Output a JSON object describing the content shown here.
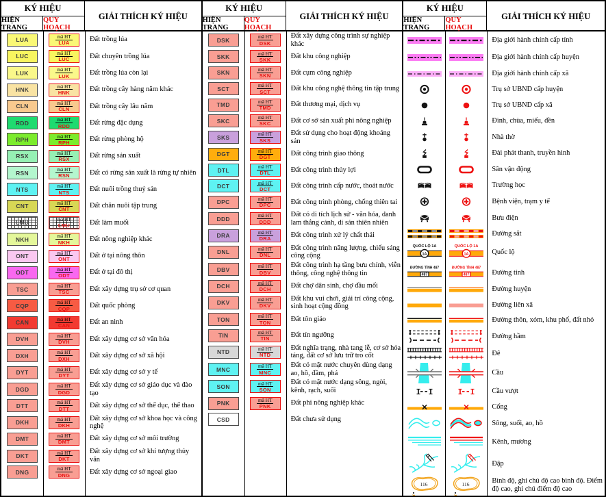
{
  "headers": {
    "symbol": "KÝ HIỆU",
    "current": "HIỆN TRẠNG",
    "planning": "QUY HOẠCH",
    "explanation": "GIẢI THÍCH KÝ HIỆU",
    "code_prefix": "mã HT"
  },
  "colors": {
    "planning_red": "#e80e0e",
    "symbol_black": "#141414",
    "magenta_band": "#fb7df3",
    "magenta_band_light": "#fdaef8",
    "road_orange": "#ffa90a",
    "water_cyan": "#35eded",
    "salmon": "#f99e93",
    "railway_gray": "#8c8c8c",
    "railway_pink": "#f7a2a2",
    "road_gray": "#8c8c8c"
  },
  "group1": {
    "rows": [
      {
        "code": "LUA",
        "color": "#faf876",
        "desc": "Đất trồng lúa"
      },
      {
        "code": "LUC",
        "color": "#f8f55f",
        "desc": "Đất chuyên trồng lúa"
      },
      {
        "code": "LUK",
        "color": "#faf88a",
        "desc": "Đất trồng lúa còn lại"
      },
      {
        "code": "HNK",
        "color": "#f9e3a3",
        "desc": "Đất trồng cây hàng năm khác"
      },
      {
        "code": "CLN",
        "color": "#f8c98e",
        "desc": "Đất trồng cây lâu năm"
      },
      {
        "code": "RDD",
        "color": "#1edb70",
        "desc": "Đất rừng đặc dụng"
      },
      {
        "code": "RPH",
        "color": "#7bec2c",
        "desc": "Đất rừng phòng hộ"
      },
      {
        "code": "RSX",
        "color": "#96f0b4",
        "desc": "Đất rừng sản xuất"
      },
      {
        "code": "RSN",
        "color": "#b4f6ce",
        "desc": "Đất có rừng sản xuất là rừng tự nhiên"
      },
      {
        "code": "NTS",
        "color": "#5ef2f2",
        "desc": "Đất nuôi trồng thuỷ sản"
      },
      {
        "code": "CNT",
        "color": "#d8d855",
        "desc": "Đất chăn nuôi tập trung"
      },
      {
        "code": "LMU",
        "color": "#ffffff",
        "pattern": "grid",
        "desc": "Đất làm muối"
      },
      {
        "code": "NKH",
        "color": "#e4f79a",
        "desc": "Đất nông nghiệp khác"
      },
      {
        "code": "ONT",
        "color": "#fac8f0",
        "desc": "Đất ở tại nông thôn"
      },
      {
        "code": "ODT",
        "color": "#f968f0",
        "desc": "Đất ở tại đô thị"
      },
      {
        "code": "TSC",
        "color": "#f99e93",
        "desc": "Đất xây dựng trụ sở cơ quan"
      },
      {
        "code": "CQP",
        "color": "#f75b43",
        "desc": "Đất quốc phòng"
      },
      {
        "code": "CAN",
        "color": "#f23a31",
        "desc": "Đất an ninh"
      },
      {
        "code": "DVH",
        "color": "#f99e93",
        "desc": "Đất xây dựng cơ sở văn hóa"
      },
      {
        "code": "DXH",
        "color": "#f99e93",
        "desc": "Đất xây dựng cơ sở xã hội"
      },
      {
        "code": "DYT",
        "color": "#f99e93",
        "desc": "Đất xây dựng cơ sở y tế"
      },
      {
        "code": "DGD",
        "color": "#f99e93",
        "desc": "Đất xây dựng cơ sở giáo dục và đào tạo"
      },
      {
        "code": "DTT",
        "color": "#f99e93",
        "desc": "Đất xây dựng cơ sở thể dục, thể thao"
      },
      {
        "code": "DKH",
        "color": "#f99e93",
        "desc": "Đất xây dựng cơ sở khoa học và công nghệ"
      },
      {
        "code": "DMT",
        "color": "#f99e93",
        "desc": "Đất xây dựng cơ sở môi trường"
      },
      {
        "code": "DKT",
        "color": "#f99e93",
        "desc": "Đất xây dựng cơ sở khí tượng thủy văn"
      },
      {
        "code": "DNG",
        "color": "#f99e93",
        "desc": "Đất xây dựng cơ sở ngoại giao"
      }
    ]
  },
  "group2": {
    "rows": [
      {
        "code": "DSK",
        "color": "#f99e93",
        "desc": "Đất xây dựng công trình sự nghiệp khác"
      },
      {
        "code": "SKK",
        "color": "#f99e93",
        "desc": "Đất khu công nghiệp"
      },
      {
        "code": "SKN",
        "color": "#f99e93",
        "desc": "Đất cụm công nghiệp"
      },
      {
        "code": "SCT",
        "color": "#f99e93",
        "desc": "Đất khu công nghệ thông tin tập trung"
      },
      {
        "code": "TMD",
        "color": "#f99e93",
        "desc": "Đất thương mại, dịch vụ"
      },
      {
        "code": "SKC",
        "color": "#f99e93",
        "desc": "Đất cơ sở sản xuất phi nông nghiệp"
      },
      {
        "code": "SKS",
        "color": "#c9a0dc",
        "desc": "Đất sử dụng cho hoạt động khoáng sản"
      },
      {
        "code": "DGT",
        "color": "#ffad0d",
        "desc": "Đất công trình giao thông"
      },
      {
        "code": "DTL",
        "color": "#5ef2f2",
        "desc": "Đất công trình thủy lợi"
      },
      {
        "code": "DCT",
        "color": "#5ef2f2",
        "desc": "Đất công trình cấp nước, thoát nước"
      },
      {
        "code": "DPC",
        "color": "#f99e93",
        "desc": "Đất công trình phòng, chống thiên tai"
      },
      {
        "code": "DDD",
        "color": "#f99e93",
        "desc": "Đất có di tích lịch sử - văn hóa, danh lam thắng cảnh, di sản thiên nhiên"
      },
      {
        "code": "DRA",
        "color": "#c9a0dc",
        "desc": "Đất công trình xử lý chất thải"
      },
      {
        "code": "DNL",
        "color": "#f99e93",
        "desc": "Đất công trình năng lượng, chiếu sáng công cộng"
      },
      {
        "code": "DBV",
        "color": "#f99e93",
        "desc": "Đất công trình hạ tầng bưu chính, viễn thông, công nghệ thông tin"
      },
      {
        "code": "DCH",
        "color": "#f99e93",
        "desc": "Đất chợ dân sinh, chợ đầu mối"
      },
      {
        "code": "DKV",
        "color": "#f99e93",
        "desc": "Đất khu vui chơi, giải trí công cộng, sinh hoạt cộng đồng"
      },
      {
        "code": "TON",
        "color": "#f99e93",
        "desc": "Đất tôn giáo"
      },
      {
        "code": "TIN",
        "color": "#f99e93",
        "desc": "Đất tín ngưỡng"
      },
      {
        "code": "NTD",
        "color": "#d8d8d8",
        "desc": "Đất nghĩa trạng, nhà tang lễ, cơ sở hỏa táng, đất cơ sở lưu trữ tro cốt"
      },
      {
        "code": "MNC",
        "color": "#5ef2f2",
        "desc": "Đất có mặt nước chuyên dùng dạng ao, hồ, đầm, phá"
      },
      {
        "code": "SON",
        "color": "#5ef2f2",
        "desc": "Đất có mặt nước dạng sông, ngòi, kênh, rạch, suối"
      },
      {
        "code": "PNK",
        "color": "#f99e93",
        "desc": "Đất phi nông nghiệp khác"
      },
      {
        "code": "CSD",
        "color": "#ffffff",
        "no_planning": true,
        "desc": "Đất chưa sử dụng"
      }
    ]
  },
  "group3": {
    "labels": {
      "highway_name": "QUỐC LỘ 1A",
      "highway_badge": "1A",
      "province_road_name": "ĐƯỜNG TỈNH 487",
      "province_road_badge": "487",
      "contour_value": "116"
    },
    "rows": [
      {
        "symbol": "adm-province",
        "desc": "Địa giới hành chính cấp tỉnh"
      },
      {
        "symbol": "adm-district",
        "desc": "Địa giới hành chính cấp huyện"
      },
      {
        "symbol": "adm-commune",
        "desc": "Địa giới hành chính cấp xã"
      },
      {
        "symbol": "ubnd-district",
        "desc": "Trụ sở UBND cấp huyện"
      },
      {
        "symbol": "ubnd-commune",
        "desc": "Trụ sở UBND cấp xã"
      },
      {
        "symbol": "temple",
        "desc": "Đình, chùa, miếu, đền"
      },
      {
        "symbol": "church",
        "desc": "Nhà thờ"
      },
      {
        "symbol": "radio",
        "desc": "Đài phát thanh, truyền hình"
      },
      {
        "symbol": "stadium",
        "desc": "Sân vận động"
      },
      {
        "symbol": "school",
        "desc": "Trường học"
      },
      {
        "symbol": "hospital",
        "desc": "Bệnh viện, trạm y tế"
      },
      {
        "symbol": "post",
        "desc": "Bưu điện"
      },
      {
        "symbol": "railway",
        "desc": "Đường sắt"
      },
      {
        "symbol": "highway",
        "desc": "Quốc lộ"
      },
      {
        "symbol": "province-road",
        "desc": "Đường tỉnh"
      },
      {
        "symbol": "district-road",
        "desc": "Đường huyện"
      },
      {
        "symbol": "commune-road",
        "desc": "Đường liên xã"
      },
      {
        "symbol": "village-road",
        "desc": "Đường thôn, xóm, khu phố, đất nhỏ"
      },
      {
        "symbol": "tunnel",
        "desc": "Đường hầm"
      },
      {
        "symbol": "dike",
        "desc": "Đê"
      },
      {
        "symbol": "bridge",
        "desc": "Cầu"
      },
      {
        "symbol": "overpass",
        "desc": "Cầu vượt"
      },
      {
        "symbol": "culvert",
        "desc": "Cống"
      },
      {
        "symbol": "river",
        "desc": "Sông, suối, ao, hồ"
      },
      {
        "symbol": "canal",
        "desc": "Kênh, mương"
      },
      {
        "symbol": "dam",
        "desc": "Đập"
      },
      {
        "symbol": "contour",
        "desc": "Bình độ, ghi chú độ cao bình độ. Điểm độ cao, ghi chú điểm độ cao"
      }
    ]
  }
}
